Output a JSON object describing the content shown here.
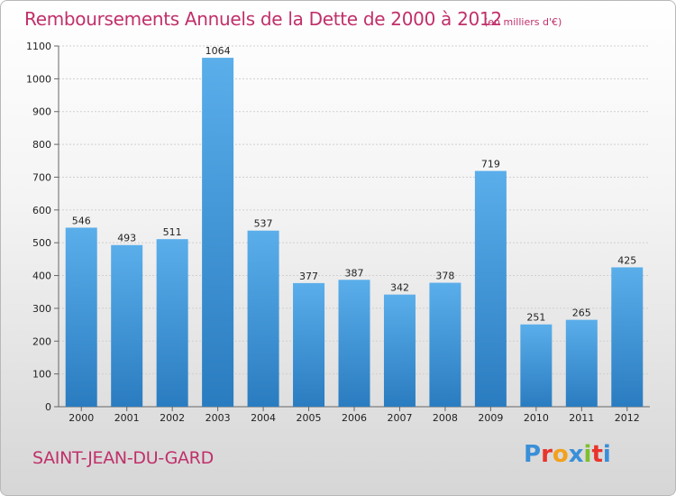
{
  "chart_data": {
    "type": "bar",
    "title": "Remboursements Annuels de la Dette de 2000 à 2012",
    "subtitle": "(en milliers d'€)",
    "categories": [
      "2000",
      "2001",
      "2002",
      "2003",
      "2004",
      "2005",
      "2006",
      "2007",
      "2008",
      "2009",
      "2010",
      "2011",
      "2012"
    ],
    "values": [
      546,
      493,
      511,
      1064,
      537,
      377,
      387,
      342,
      378,
      719,
      251,
      265,
      425
    ],
    "xlabel": "",
    "ylabel": "",
    "ylim": [
      0,
      1100
    ],
    "yticks": [
      0,
      100,
      200,
      300,
      400,
      500,
      600,
      700,
      800,
      900,
      1000,
      1100
    ],
    "grid": true,
    "bar_color": "#4a9fde",
    "title_color": "#c0306a"
  },
  "commune": "SAINT-JEAN-DU-GARD",
  "brand": {
    "letters": [
      "P",
      "r",
      "o",
      "x",
      "i",
      "t",
      "i"
    ],
    "colors": [
      "#3a8fd8",
      "#e8342b",
      "#f2a01e",
      "#3a8fd8",
      "#7fbf2e",
      "#e8342b",
      "#3a8fd8"
    ]
  }
}
